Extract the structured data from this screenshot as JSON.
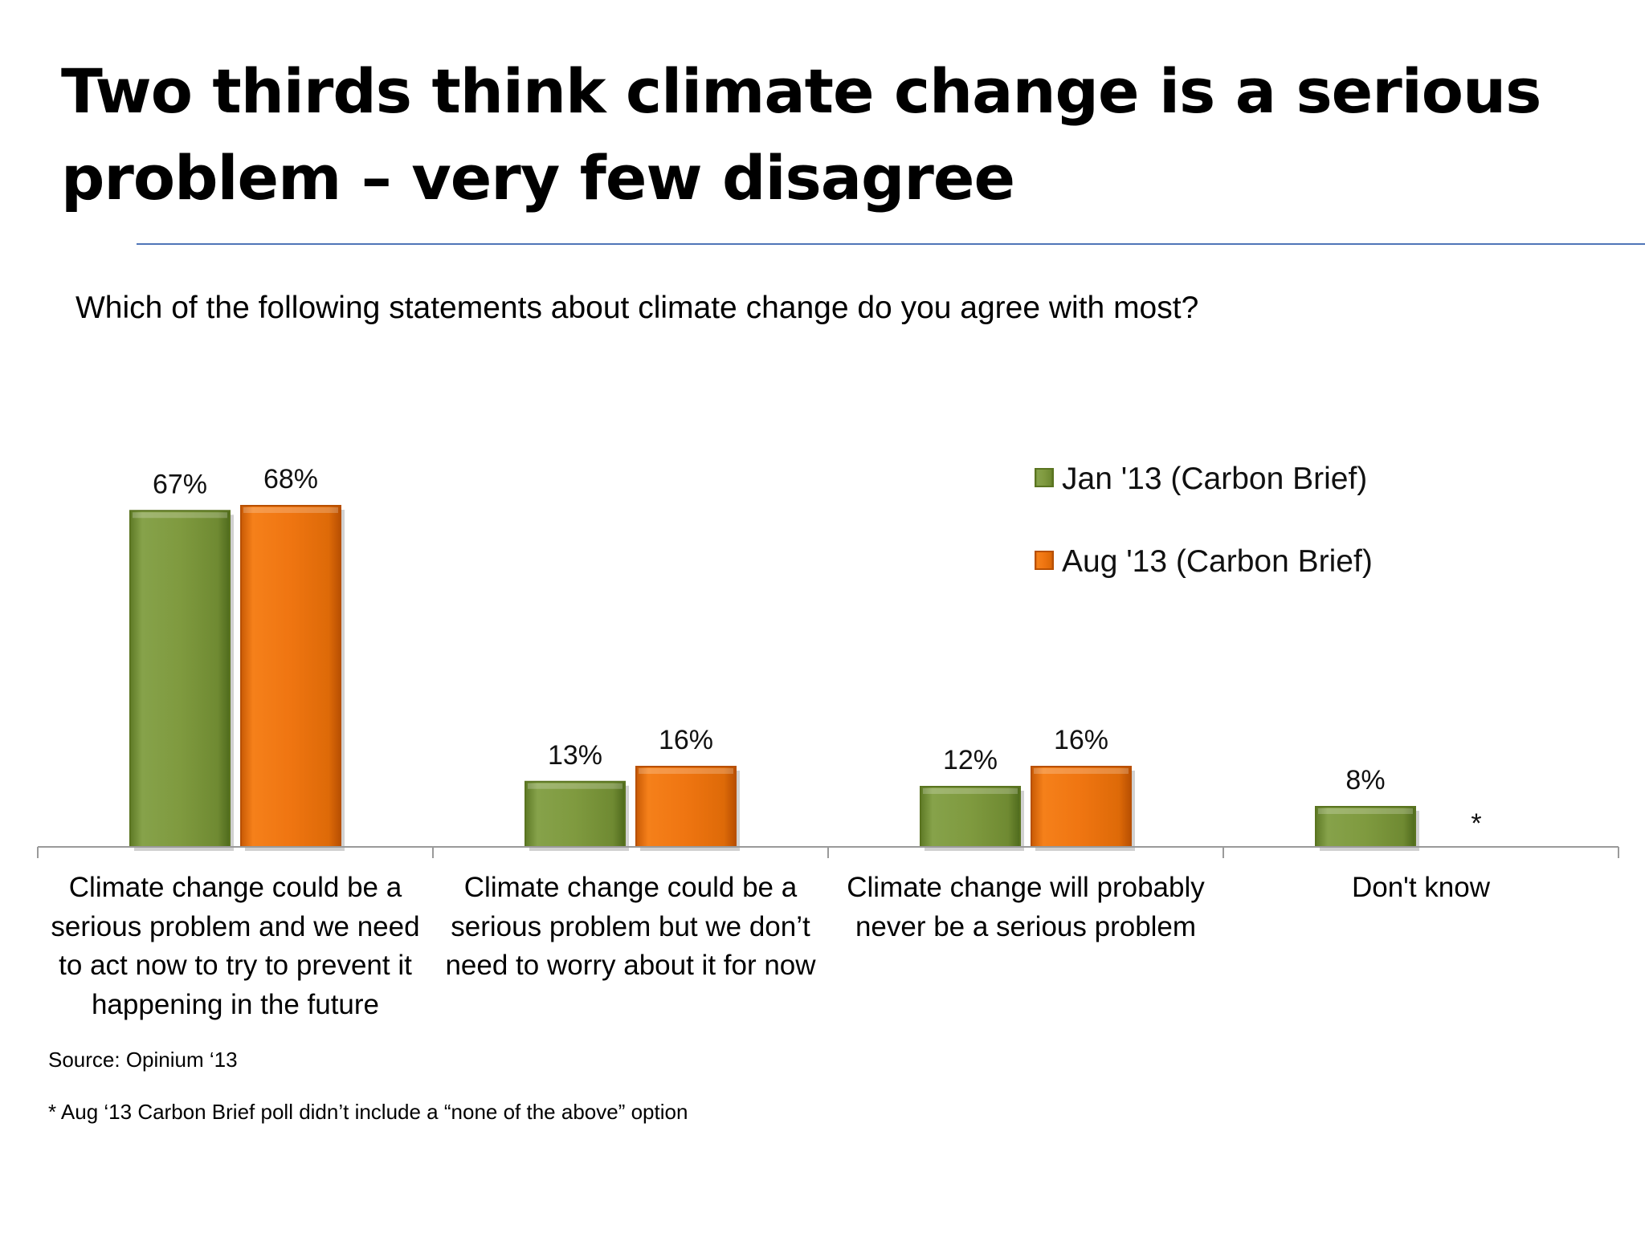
{
  "slide": {
    "title": "Two thirds think climate change is a serious problem – very few disagree",
    "question": "Which of the following statements about climate change do you agree with most?",
    "source": "Source: Opinium ‘13",
    "footnote": "* Aug ‘13 Carbon Brief poll didn’t include a  “none of the above” option"
  },
  "colors": {
    "jan": "#7f9a3f",
    "aug": "#ef7511",
    "axis": "#9a9a9a",
    "rule": "#4f75b8"
  },
  "chart_data": {
    "type": "bar",
    "categories": [
      "Climate change could be a serious problem and we need to act now to try to prevent it happening in the future",
      "Climate change could be a serious problem but we don’t need to worry about it for now",
      "Climate change will probably never be a serious problem",
      "Don't know"
    ],
    "series": [
      {
        "name": "Jan '13 (Carbon Brief)",
        "values": [
          67,
          13,
          12,
          8
        ],
        "labels": [
          "67%",
          "13%",
          "12%",
          "8%"
        ]
      },
      {
        "name": "Aug '13 (Carbon Brief)",
        "values": [
          68,
          16,
          16,
          null
        ],
        "labels": [
          "68%",
          "16%",
          "16%",
          "*"
        ]
      }
    ],
    "unit": "%",
    "ylim": [
      0,
      68
    ],
    "grid": false,
    "legend_position": "top-right"
  }
}
